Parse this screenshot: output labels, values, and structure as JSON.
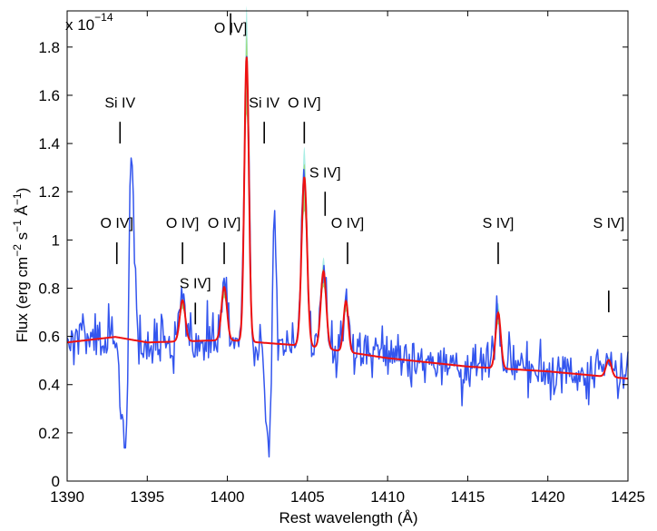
{
  "chart_data": {
    "type": "line",
    "xlabel": "Rest wavelength (Å)",
    "ylabel": {
      "base": "Flux (erg cm",
      "exp1": "−2",
      "mid1": " s",
      "exp2": "−1",
      "mid2": " Å",
      "exp3": "−1",
      "end": ")"
    },
    "scale_label": {
      "base": "x 10",
      "exp": "−14"
    },
    "xlim": [
      1390,
      1425
    ],
    "ylim": [
      0,
      1.95
    ],
    "xticks": [
      1390,
      1395,
      1400,
      1405,
      1410,
      1415,
      1420,
      1425
    ],
    "xtick_labels": [
      "1390",
      "1395",
      "1400",
      "1405",
      "1410",
      "1415",
      "1420",
      "1425"
    ],
    "yticks": [
      0,
      0.2,
      0.4,
      0.6,
      0.8,
      1,
      1.2,
      1.4,
      1.6,
      1.8
    ],
    "ytick_labels": [
      "0",
      "0.2",
      "0.4",
      "0.6",
      "0.8",
      "1",
      "1.2",
      "1.4",
      "1.6",
      "1.8"
    ],
    "continuum": {
      "x": [
        1390,
        1393,
        1395,
        1400,
        1405,
        1410,
        1415,
        1420,
        1425
      ],
      "y": [
        0.575,
        0.598,
        0.575,
        0.585,
        0.56,
        0.51,
        0.475,
        0.455,
        0.425
      ]
    },
    "lines": [
      {
        "ion": "O IV]",
        "x": 1397.2,
        "amp": 0.17,
        "sigma": 0.17
      },
      {
        "ion": "O IV]",
        "x": 1399.8,
        "amp": 0.22,
        "sigma": 0.17
      },
      {
        "ion": "O IV]",
        "x": 1401.2,
        "amp": 1.18,
        "sigma": 0.14
      },
      {
        "ion": "O IV]",
        "x": 1404.8,
        "amp": 0.7,
        "sigma": 0.17
      },
      {
        "ion": "S IV]",
        "x": 1406.0,
        "amp": 0.32,
        "sigma": 0.17
      },
      {
        "ion": "O IV]",
        "x": 1407.4,
        "amp": 0.21,
        "sigma": 0.15
      },
      {
        "ion": "S IV]",
        "x": 1416.9,
        "amp": 0.23,
        "sigma": 0.16
      },
      {
        "ion": "S IV]",
        "x": 1423.8,
        "amp": 0.07,
        "sigma": 0.17
      }
    ],
    "observed_features": [
      {
        "ion": "Si IV",
        "x": 1394.0,
        "emission": 0.88,
        "sigma": 0.15
      },
      {
        "ion": "Si IV absorption",
        "x": 1393.6,
        "emission": -0.5,
        "sigma": 0.22
      },
      {
        "ion": "Si IV",
        "x": 1402.9,
        "emission": 0.72,
        "sigma": 0.12
      },
      {
        "ion": "Si IV absorption",
        "x": 1402.6,
        "emission": -0.5,
        "sigma": 0.2
      }
    ],
    "annotations": [
      {
        "text": "O IV]",
        "x": 1393.1,
        "y": 1.05,
        "mark_y": [
          0.9,
          0.99
        ]
      },
      {
        "text": "Si IV",
        "x": 1393.3,
        "y": 1.55,
        "mark_y": [
          1.4,
          1.49
        ]
      },
      {
        "text": "O IV]",
        "x": 1397.2,
        "y": 1.05,
        "mark_y": [
          0.9,
          0.99
        ]
      },
      {
        "text": "S IV]",
        "x": 1398.0,
        "y": 0.8,
        "mark_y": [
          0.65,
          0.74
        ]
      },
      {
        "text": "O IV]",
        "x": 1399.8,
        "y": 1.05,
        "mark_y": [
          0.9,
          0.99
        ]
      },
      {
        "text": "O IV]",
        "x": 1400.2,
        "y": 1.86,
        "mark_y": [
          1.85,
          1.94
        ]
      },
      {
        "text": "Si IV",
        "x": 1402.3,
        "y": 1.55,
        "mark_y": [
          1.4,
          1.49
        ]
      },
      {
        "text": "O IV]",
        "x": 1404.8,
        "y": 1.55,
        "mark_y": [
          1.4,
          1.49
        ]
      },
      {
        "text": "S IV]",
        "x": 1406.1,
        "y": 1.26,
        "mark_y": [
          1.1,
          1.2
        ]
      },
      {
        "text": "O IV]",
        "x": 1407.5,
        "y": 1.05,
        "mark_y": [
          0.9,
          0.99
        ]
      },
      {
        "text": "S IV]",
        "x": 1416.9,
        "y": 1.05,
        "mark_y": [
          0.9,
          0.99
        ]
      },
      {
        "text": "S IV]",
        "x": 1423.8,
        "y": 1.05,
        "mark_y": [
          0.7,
          0.79
        ]
      }
    ],
    "noise_amplitude": 0.055,
    "colors": {
      "observed": "#3355ee",
      "model": "#ee1111",
      "band_inner": "#99cc33",
      "band_outer": "#55ddcc"
    }
  }
}
